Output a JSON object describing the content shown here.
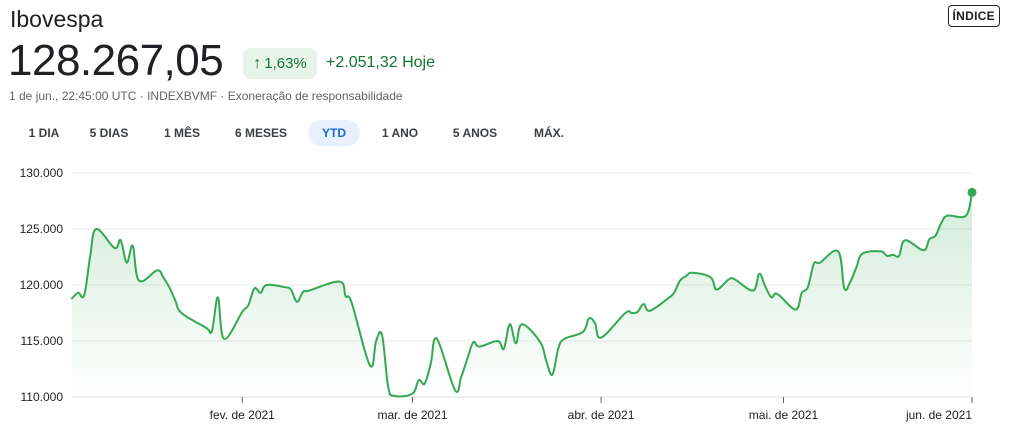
{
  "header": {
    "title": "Ibovespa",
    "badge": "ÍNDICE",
    "price": "128.267,05",
    "change_pct": "1,63%",
    "change_abs": "+2.051,32 Hoje",
    "meta": "1 de jun., 22:45:00 UTC · INDEXBVMF · Exoneração de responsabilidade",
    "up_color": "#137333",
    "up_bg": "#e6f4ea"
  },
  "tabs": [
    {
      "label": "1 DIA",
      "active": false
    },
    {
      "label": "5 DIAS",
      "active": false
    },
    {
      "label": "1 MÊS",
      "active": false
    },
    {
      "label": "6 MESES",
      "active": false
    },
    {
      "label": "YTD",
      "active": true
    },
    {
      "label": "1 ANO",
      "active": false
    },
    {
      "label": "5 ANOS",
      "active": false
    },
    {
      "label": "MÁX.",
      "active": false
    }
  ],
  "chart_data": {
    "type": "area",
    "title": "",
    "xlabel": "",
    "ylabel": "",
    "line_color": "#34a853",
    "ylim": [
      110000,
      130000
    ],
    "y_ticks": [
      {
        "value": 130000,
        "label": "130.000"
      },
      {
        "value": 125000,
        "label": "125.000"
      },
      {
        "value": 120000,
        "label": "120.000"
      },
      {
        "value": 115000,
        "label": "115.000"
      },
      {
        "value": 110000,
        "label": "110.000"
      }
    ],
    "x_ticks": [
      {
        "date": "2021-02-01",
        "label": "fev. de 2021"
      },
      {
        "date": "2021-03-01",
        "label": "mar. de 2021"
      },
      {
        "date": "2021-04-01",
        "label": "abr. de 2021"
      },
      {
        "date": "2021-05-01",
        "label": "mai. de 2021"
      },
      {
        "date": "2021-06-01",
        "label": "jun. de 2021"
      }
    ],
    "series": [
      {
        "x": [
          "2021-01-04",
          "2021-01-05",
          "2021-01-06",
          "2021-01-07",
          "2021-01-08",
          "2021-01-11",
          "2021-01-12",
          "2021-01-13",
          "2021-01-14",
          "2021-01-15",
          "2021-01-18",
          "2021-01-19",
          "2021-01-20",
          "2021-01-21",
          "2021-01-22",
          "2021-01-26",
          "2021-01-27",
          "2021-01-28",
          "2021-01-29",
          "2021-02-01",
          "2021-02-02",
          "2021-02-03",
          "2021-02-04",
          "2021-02-05",
          "2021-02-08",
          "2021-02-09",
          "2021-02-10",
          "2021-02-11",
          "2021-02-12",
          "2021-02-17",
          "2021-02-18",
          "2021-02-19",
          "2021-02-22",
          "2021-02-23",
          "2021-02-24",
          "2021-02-25",
          "2021-02-26",
          "2021-03-01",
          "2021-03-02",
          "2021-03-03",
          "2021-03-04",
          "2021-03-05",
          "2021-03-08",
          "2021-03-09",
          "2021-03-10",
          "2021-03-11",
          "2021-03-12",
          "2021-03-15",
          "2021-03-16",
          "2021-03-17",
          "2021-03-18",
          "2021-03-19",
          "2021-03-22",
          "2021-03-23",
          "2021-03-24",
          "2021-03-25",
          "2021-03-26",
          "2021-03-29",
          "2021-03-30",
          "2021-03-31",
          "2021-04-01",
          "2021-04-05",
          "2021-04-06",
          "2021-04-07",
          "2021-04-08",
          "2021-04-09",
          "2021-04-12",
          "2021-04-13",
          "2021-04-14",
          "2021-04-15",
          "2021-04-16",
          "2021-04-19",
          "2021-04-20",
          "2021-04-22",
          "2021-04-23",
          "2021-04-26",
          "2021-04-27",
          "2021-04-28",
          "2021-04-29",
          "2021-04-30",
          "2021-05-03",
          "2021-05-04",
          "2021-05-05",
          "2021-05-06",
          "2021-05-07",
          "2021-05-10",
          "2021-05-11",
          "2021-05-12",
          "2021-05-13",
          "2021-05-14",
          "2021-05-17",
          "2021-05-18",
          "2021-05-19",
          "2021-05-20",
          "2021-05-21",
          "2021-05-24",
          "2021-05-25",
          "2021-05-26",
          "2021-05-27",
          "2021-05-28",
          "2021-05-31",
          "2021-06-01"
        ],
        "y": [
          118800,
          119300,
          119100,
          122600,
          125000,
          123300,
          124000,
          122000,
          123500,
          120400,
          121300,
          120700,
          119800,
          118600,
          117500,
          116200,
          115900,
          118900,
          115200,
          117600,
          118200,
          119700,
          119300,
          120000,
          119800,
          119600,
          118500,
          119400,
          119500,
          120300,
          119000,
          118400,
          112800,
          115000,
          115500,
          110900,
          110100,
          110300,
          111500,
          111200,
          113000,
          115200,
          110600,
          111800,
          113400,
          114900,
          114500,
          115000,
          114300,
          116500,
          114800,
          116500,
          114900,
          113200,
          112000,
          114400,
          115200,
          115800,
          117000,
          116600,
          115300,
          117500,
          117500,
          117600,
          118300,
          117700,
          118800,
          119300,
          120400,
          120800,
          121100,
          120700,
          119600,
          120500,
          120500,
          119500,
          121000,
          119900,
          118900,
          119200,
          117800,
          119300,
          119800,
          121900,
          122000,
          123000,
          119700,
          120300,
          121600,
          122800,
          123000,
          122600,
          122700,
          122600,
          124000,
          123100,
          124100,
          124400,
          125600,
          126200,
          126200,
          128267
        ]
      }
    ]
  }
}
